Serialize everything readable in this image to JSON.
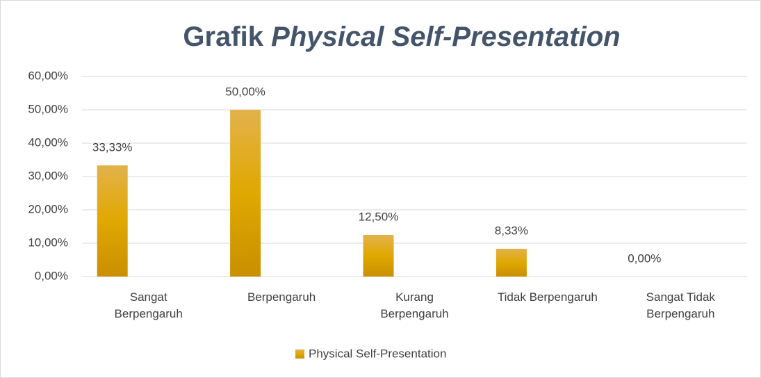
{
  "chart_data": {
    "type": "bar",
    "title": [
      "Grafik",
      "Physical Self-Presentation"
    ],
    "categories": [
      "Sangat Berpengaruh",
      "Berpengaruh",
      "Kurang Berpengaruh",
      "Tidak Berpengaruh",
      "Sangat Tidak Berpengaruh"
    ],
    "series": [
      {
        "name": "Physical Self-Presentation",
        "color": "#d9a100",
        "values": [
          33.33,
          50,
          12.5,
          8.33,
          0
        ],
        "value_labels": [
          "33,33%",
          "50,00%",
          "12,50%",
          "8,33%",
          "0,00%"
        ]
      }
    ],
    "ylim": [
      0,
      60
    ],
    "yticks": [
      {
        "value": 0,
        "label": "0,00%"
      },
      {
        "value": 10,
        "label": "10,00%"
      },
      {
        "value": 20,
        "label": "20,00%"
      },
      {
        "value": 30,
        "label": "30,00%"
      },
      {
        "value": 40,
        "label": "40,00%"
      },
      {
        "value": 50,
        "label": "50,00%"
      },
      {
        "value": 60,
        "label": "60,00%"
      }
    ],
    "grid": true,
    "legend": "bottom"
  }
}
